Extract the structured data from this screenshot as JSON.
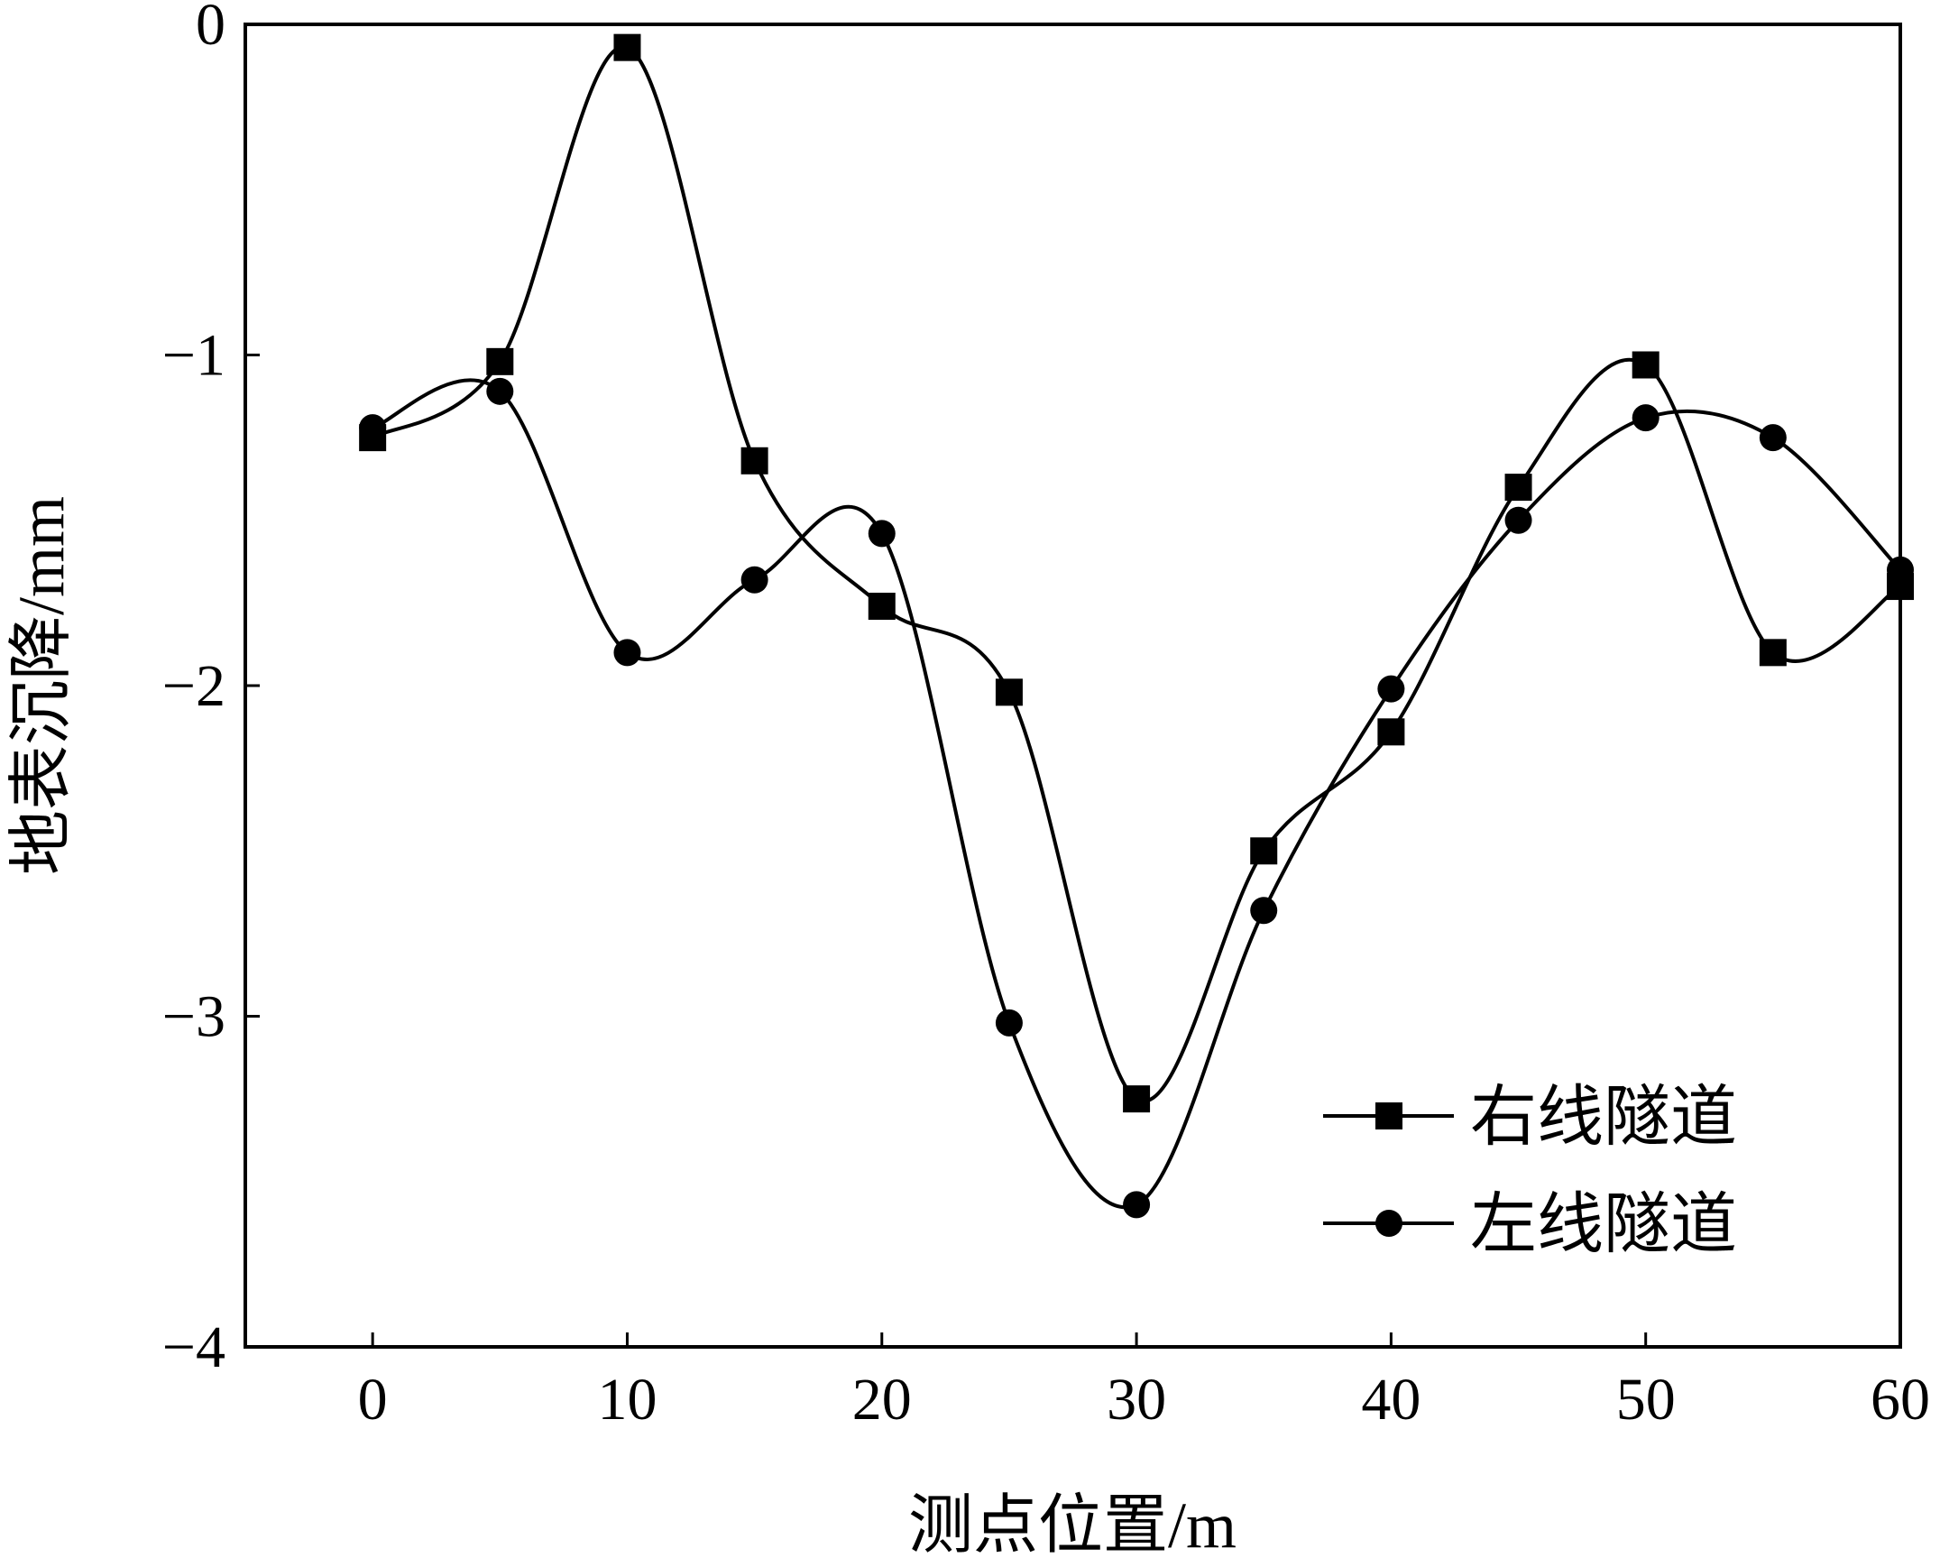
{
  "chart_data": {
    "type": "line",
    "xlabel": "测点位置/m",
    "ylabel": "地表沉降/mm",
    "xlim": [
      -5,
      60
    ],
    "ylim": [
      -4,
      0
    ],
    "xticks": [
      0,
      10,
      20,
      30,
      40,
      50,
      60
    ],
    "yticks": [
      0,
      -1,
      -2,
      -3,
      -4
    ],
    "xtick_labels": [
      "0",
      "10",
      "20",
      "30",
      "40",
      "50",
      "60"
    ],
    "ytick_labels": [
      "0",
      "−1",
      "−2",
      "−3",
      "−4"
    ],
    "grid": false,
    "legend_position": "bottom-right",
    "smooth": true,
    "series": [
      {
        "name": "右线隧道",
        "marker": "square",
        "color": "#000000",
        "x": [
          0,
          5,
          10,
          15,
          20,
          25,
          30,
          35,
          40,
          45,
          50,
          55,
          60
        ],
        "y": [
          -1.25,
          -1.02,
          -0.07,
          -1.32,
          -1.76,
          -2.02,
          -3.25,
          -2.5,
          -2.14,
          -1.4,
          -1.03,
          -1.9,
          -1.7
        ]
      },
      {
        "name": "左线隧道",
        "marker": "circle",
        "color": "#000000",
        "x": [
          0,
          5,
          10,
          15,
          20,
          25,
          30,
          35,
          40,
          45,
          50,
          55,
          60
        ],
        "y": [
          -1.22,
          -1.11,
          -1.9,
          -1.68,
          -1.54,
          -3.02,
          -3.57,
          -2.68,
          -2.01,
          -1.5,
          -1.19,
          -1.25,
          -1.65
        ]
      }
    ]
  }
}
